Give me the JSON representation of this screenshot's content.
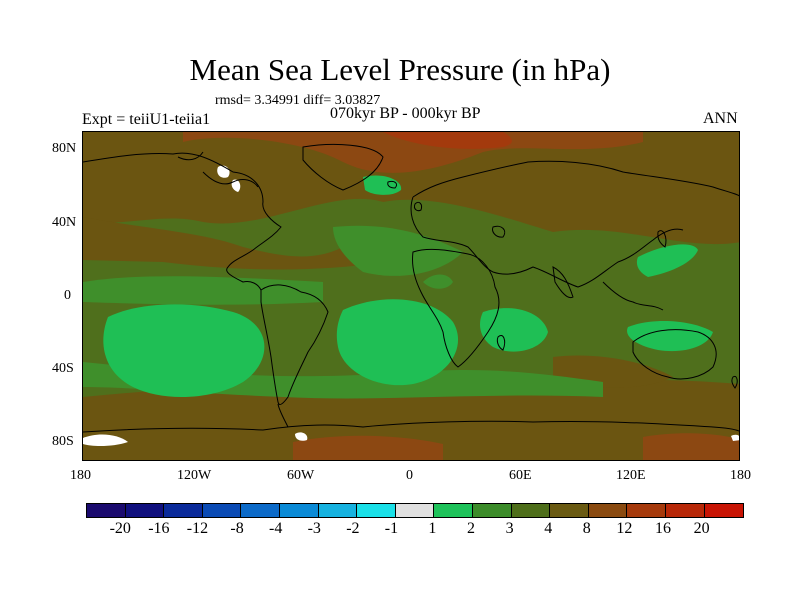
{
  "title": "Mean Sea Level Pressure (in hPa)",
  "stats_line": "rmsd= 3.34991 diff= 3.03827",
  "period": "070kyr BP - 000kyr BP",
  "experiment": "Expt = teiiU1-teiia1",
  "season": "ANN",
  "y_axis_labels": [
    "80N",
    "40N",
    "0",
    "40S",
    "80S"
  ],
  "x_axis_labels": [
    "180",
    "120W",
    "60W",
    "0",
    "60E",
    "120E",
    "180"
  ],
  "colorbar": {
    "colors": [
      "#1a0a6e",
      "#10107e",
      "#0a2a9a",
      "#0a4ab4",
      "#0c6ac8",
      "#0a8ad6",
      "#16b2e0",
      "#1ae0e8",
      "#e0e0e0",
      "#1ec25a",
      "#3c8c2a",
      "#4e6e1a",
      "#6a5a12",
      "#8a4a10",
      "#a63a0c",
      "#b82808",
      "#c81404"
    ],
    "labels": [
      "-20",
      "-16",
      "-12",
      "-8",
      "-4",
      "-3",
      "-2",
      "-1",
      "1",
      "2",
      "3",
      "4",
      "8",
      "12",
      "16",
      "20"
    ]
  },
  "map_colors": {
    "base": "#4f6f1c",
    "light_green": "#1fbf55",
    "mid_green": "#3f8f2b",
    "brown": "#6b5511",
    "dark_brown": "#8c4812",
    "red_brown": "#a33a0d",
    "white": "#ffffff",
    "coast": "#000000"
  }
}
